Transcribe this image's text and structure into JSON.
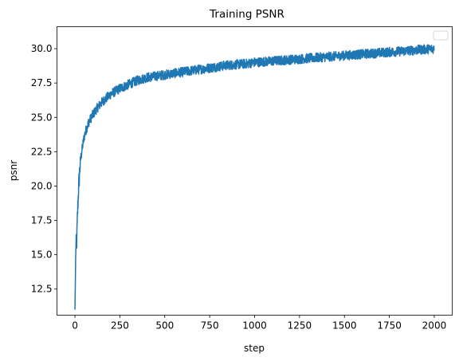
{
  "chart_data": {
    "type": "line",
    "title": "Training PSNR",
    "xlabel": "step",
    "ylabel": "psnr",
    "xlim": [
      -100,
      2100
    ],
    "ylim": [
      10.6,
      31.6
    ],
    "xticks": [
      0,
      250,
      500,
      750,
      1000,
      1250,
      1500,
      1750,
      2000
    ],
    "yticks": [
      12.5,
      15.0,
      17.5,
      20.0,
      22.5,
      25.0,
      27.5,
      30.0
    ],
    "ytick_labels": [
      "12.5",
      "15.0",
      "17.5",
      "20.0",
      "22.5",
      "25.0",
      "27.5",
      "30.0"
    ],
    "grid": false,
    "legend": "top-right (empty)",
    "series": [
      {
        "color": "#1f77b4",
        "x": [
          0,
          5,
          10,
          15,
          20,
          25,
          30,
          40,
          50,
          60,
          75,
          100,
          125,
          150,
          175,
          200,
          250,
          300,
          350,
          400,
          450,
          500,
          550,
          600,
          650,
          700,
          750,
          800,
          850,
          900,
          950,
          1000,
          1050,
          1100,
          1150,
          1200,
          1250,
          1300,
          1350,
          1400,
          1450,
          1500,
          1550,
          1600,
          1650,
          1700,
          1750,
          1800,
          1850,
          1900,
          1950,
          2000
        ],
        "y": [
          11.0,
          15.5,
          16.0,
          18.2,
          19.8,
          20.8,
          21.8,
          22.7,
          23.5,
          24.0,
          24.6,
          25.2,
          25.7,
          26.1,
          26.4,
          26.7,
          27.1,
          27.4,
          27.7,
          27.9,
          28.0,
          28.1,
          28.2,
          28.3,
          28.4,
          28.5,
          28.6,
          28.7,
          28.8,
          28.85,
          28.9,
          29.0,
          29.05,
          29.1,
          29.15,
          29.2,
          29.25,
          29.3,
          29.35,
          29.4,
          29.45,
          29.5,
          29.55,
          29.6,
          29.65,
          29.7,
          29.75,
          29.8,
          29.85,
          29.9,
          29.95,
          30.0
        ],
        "noise_amplitude": 0.35
      }
    ]
  }
}
